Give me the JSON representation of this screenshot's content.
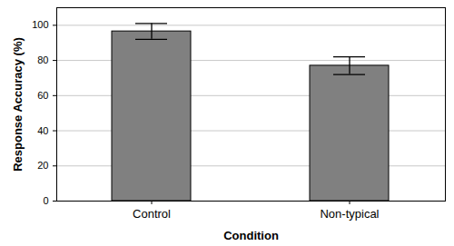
{
  "chart_data": {
    "type": "bar",
    "x_label": "Condition",
    "y_label": "Response Accuracy (%)",
    "categories": [
      "Control",
      "Non-typical"
    ],
    "values": [
      96.5,
      77
    ],
    "error": [
      4.5,
      5
    ],
    "color": "#808080",
    "ylim": [
      0,
      110
    ],
    "yticks": [
      0,
      20,
      40,
      60,
      80,
      100
    ],
    "grid": true
  }
}
